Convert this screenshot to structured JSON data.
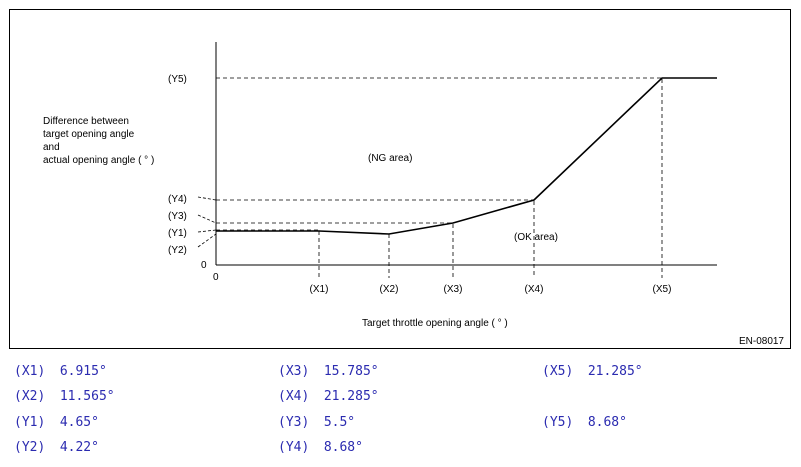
{
  "diagram": {
    "y_axis_label_lines": [
      "Difference between",
      "target opening angle",
      "and",
      "actual opening angle ( ° )"
    ],
    "x_axis_label": "Target throttle opening angle ( ° )",
    "origin_y": "0",
    "origin_x": "0",
    "x_ticks": [
      "(X1)",
      "(X2)",
      "(X3)",
      "(X4)",
      "(X5)"
    ],
    "y_ticks": [
      "(Y5)",
      "(Y4)",
      "(Y3)",
      "(Y1)",
      "(Y2)"
    ],
    "ng_area_label": "(NG area)",
    "ok_area_label": "(OK area)",
    "figure_id": "EN-08017"
  },
  "legend": [
    {
      "label": "(X1)",
      "value": "6.915°"
    },
    {
      "label": "(X2)",
      "value": "11.565°"
    },
    {
      "label": "(Y1)",
      "value": "4.65°"
    },
    {
      "label": "(Y2)",
      "value": "4.22°"
    },
    {
      "label": "(X3)",
      "value": "15.785°"
    },
    {
      "label": "(X4)",
      "value": "21.285°"
    },
    {
      "label": "(Y3)",
      "value": "5.5°"
    },
    {
      "label": "(Y4)",
      "value": "8.68°"
    },
    {
      "label": "(X5)",
      "value": "21.285°"
    },
    {
      "label": "(Y5)",
      "value": "8.68°"
    }
  ]
}
